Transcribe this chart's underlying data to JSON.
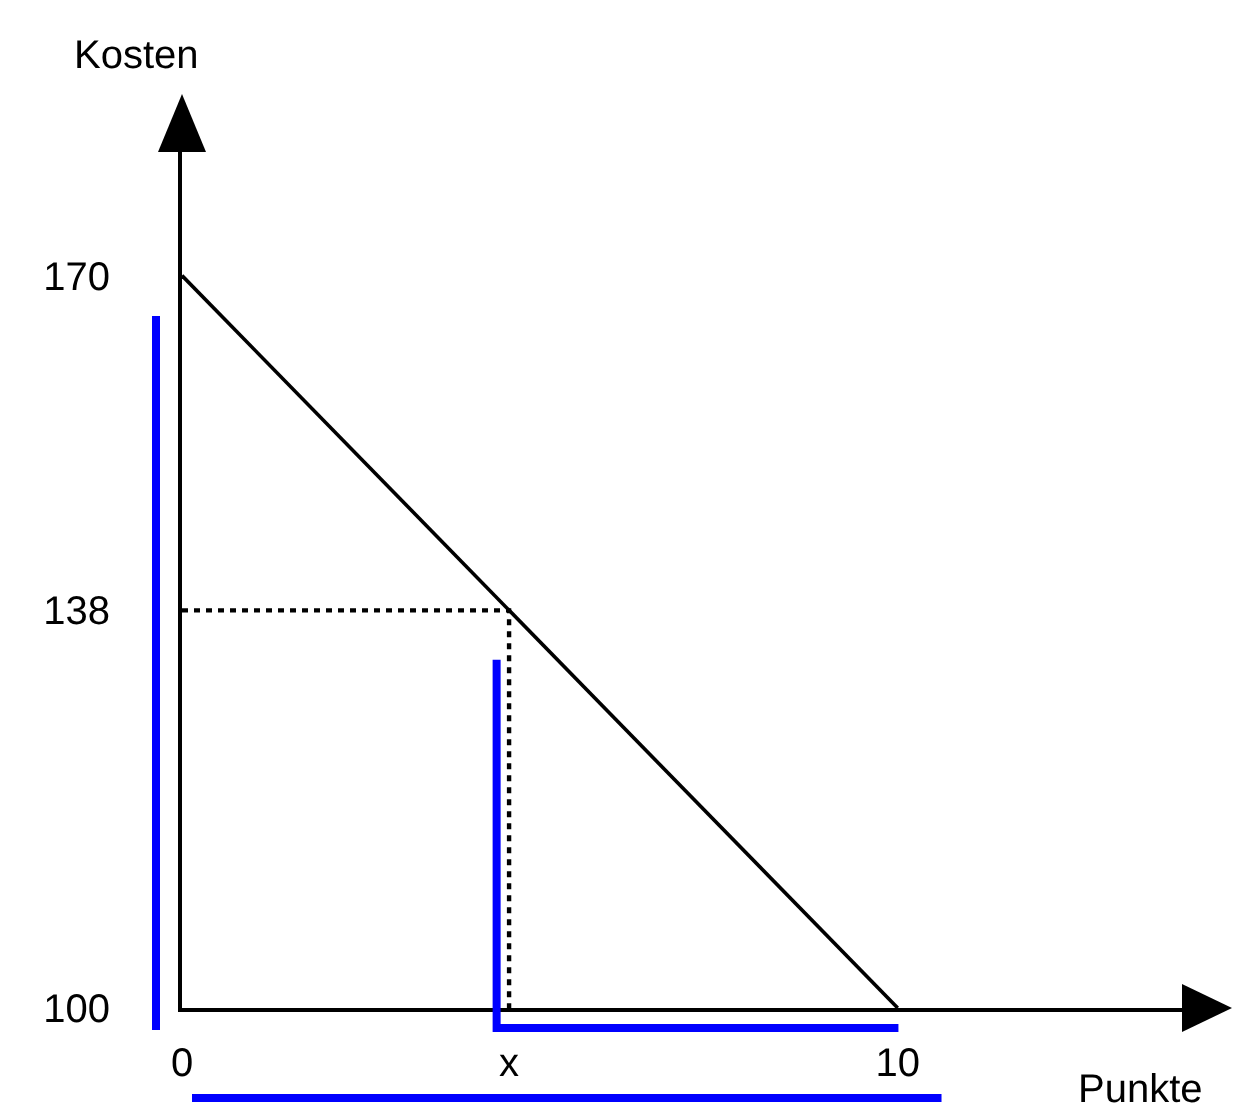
{
  "chart_data": {
    "type": "line",
    "xlabel": "Punkte",
    "ylabel": "Kosten",
    "xlim": [
      0,
      14
    ],
    "ylim": [
      100,
      182
    ],
    "xticks": [
      0,
      {
        "value": 4.57,
        "label": "x"
      },
      10
    ],
    "yticks": [
      100,
      138,
      170
    ],
    "line_style": "solid",
    "series": [
      {
        "color": "#000000",
        "x": [
          0,
          10
        ],
        "values": [
          170,
          100
        ]
      },
      {
        "color": "#000000",
        "line_style": "dotted",
        "x": [
          0,
          4.57,
          4.57
        ],
        "values": [
          138,
          138,
          100
        ]
      }
    ]
  }
}
